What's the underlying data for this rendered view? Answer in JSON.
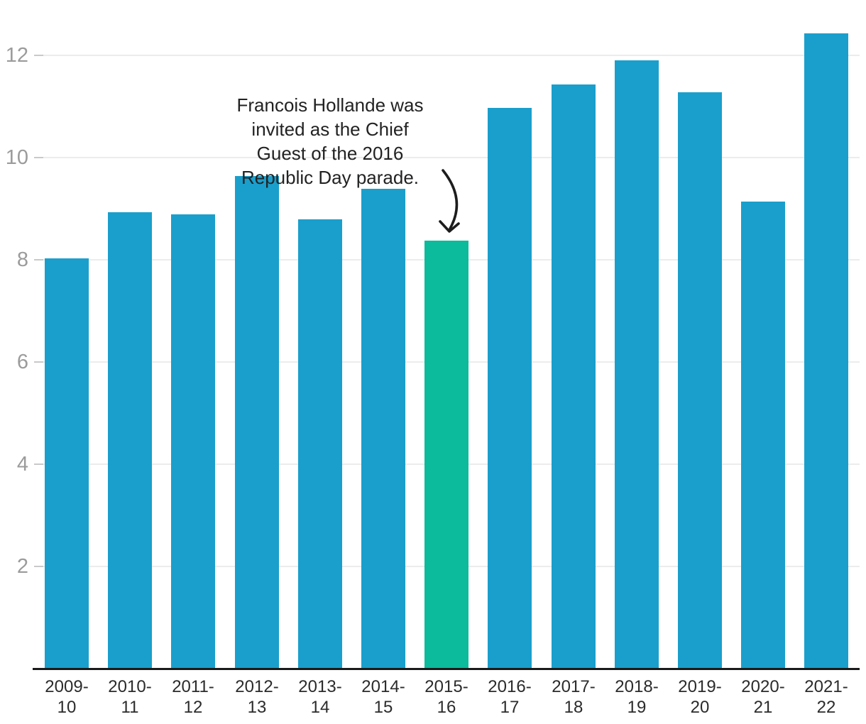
{
  "chart_data": {
    "type": "bar",
    "categories": [
      "2009-10",
      "2010-11",
      "2011-12",
      "2012-13",
      "2013-14",
      "2014-15",
      "2015-16",
      "2016-17",
      "2017-18",
      "2018-19",
      "2019-20",
      "2020-21",
      "2021-22"
    ],
    "values": [
      8.02,
      8.92,
      8.88,
      9.63,
      8.78,
      9.37,
      8.36,
      10.96,
      11.42,
      11.89,
      11.27,
      9.13,
      12.42
    ],
    "title": "",
    "xlabel": "",
    "ylabel": "",
    "ylim": [
      0,
      12.8
    ],
    "yticks": [
      2,
      4,
      6,
      8,
      10,
      12
    ],
    "grid": "horizontal",
    "legend": "none",
    "highlight": {
      "category": "2015-16",
      "index": 6
    },
    "annotation": {
      "lines": [
        "Francois Hollande was",
        "invited as the Chief",
        "Guest of the 2016",
        "Republic Day parade."
      ],
      "target_category": "2015-16",
      "arrow": true
    }
  },
  "colors": {
    "bar": "#1A9FCC",
    "highlight_bar": "#0BBB9C",
    "gridline": "#ECECEC",
    "grid_tick": "#C9C9C9",
    "axis_line": "#1A1A1A",
    "y_tick_label": "#9B9B9B",
    "x_tick_label": "#2B2B2B",
    "annotation_text": "#222222",
    "arrow": "#1D1D1D",
    "background": "#FFFFFF"
  }
}
